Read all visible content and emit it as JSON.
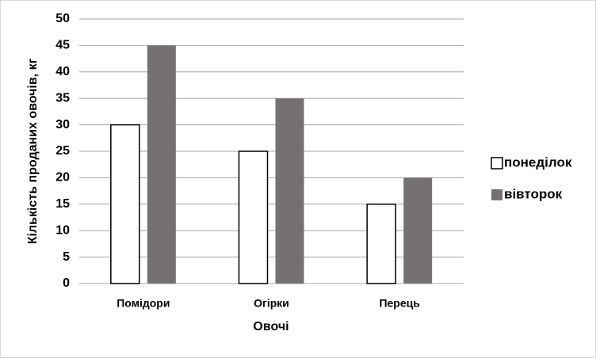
{
  "chart_data": {
    "type": "bar",
    "categories": [
      "Помідори",
      "Огірки",
      "Перець"
    ],
    "series": [
      {
        "name": "понеділок",
        "color": "#ffffff",
        "edgecolor": "#000000",
        "values": [
          30,
          25,
          15
        ]
      },
      {
        "name": "вівторок",
        "color": "#767171",
        "values": [
          45,
          35,
          20
        ]
      }
    ],
    "xlabel": "Овочі",
    "ylabel": "Кількість проданих овочів, кг",
    "ylim": [
      0,
      50
    ],
    "yticks": [
      0,
      5,
      10,
      15,
      20,
      25,
      30,
      35,
      40,
      45,
      50
    ],
    "grid": true,
    "legend": "right"
  }
}
